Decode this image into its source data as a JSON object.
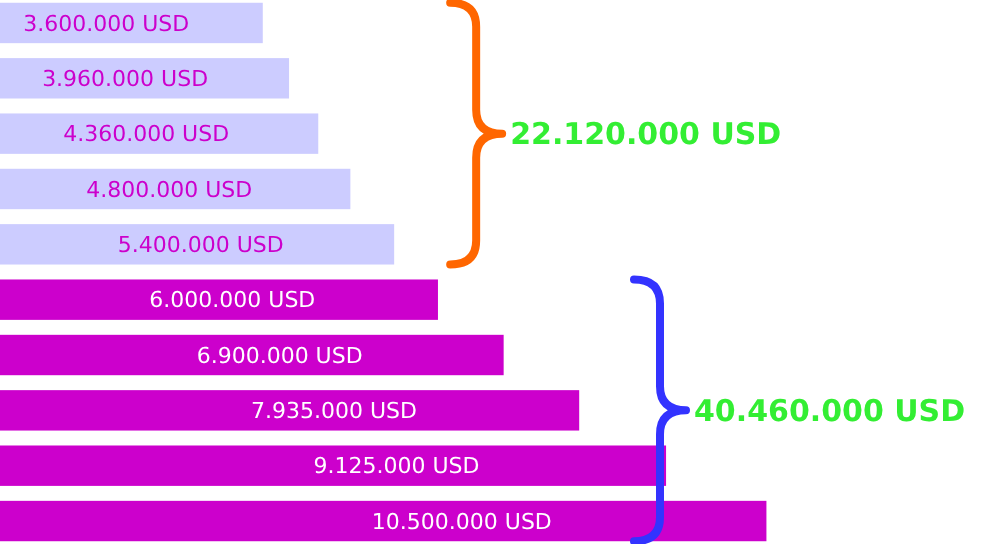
{
  "chart_data": {
    "type": "bar",
    "orientation": "horizontal",
    "categories": [
      null,
      null,
      null,
      null,
      null,
      null,
      null,
      null,
      null,
      null
    ],
    "values": [
      3600000,
      3960000,
      4360000,
      4800000,
      5400000,
      6000000,
      6900000,
      7935000,
      9125000,
      10500000
    ],
    "colors": [
      "#ccccff",
      "#ccccff",
      "#ccccff",
      "#ccccff",
      "#ccccff",
      "#cc00cc",
      "#cc00cc",
      "#cc00cc",
      "#cc00cc",
      "#cc00cc"
    ],
    "value_labels": [
      "3.600.000 USD",
      "3.960.000 USD",
      "4.360.000 USD",
      "4.800.000 USD",
      "5.400.000 USD",
      "6.000.000 USD",
      "6.900.000 USD",
      "7.935.000 USD",
      "9.125.000 USD",
      "10.500.000 USD"
    ],
    "xlim": [
      0,
      13700000
    ],
    "annotations": [
      "22.120.000 USD",
      "40.460.000 USD"
    ]
  }
}
